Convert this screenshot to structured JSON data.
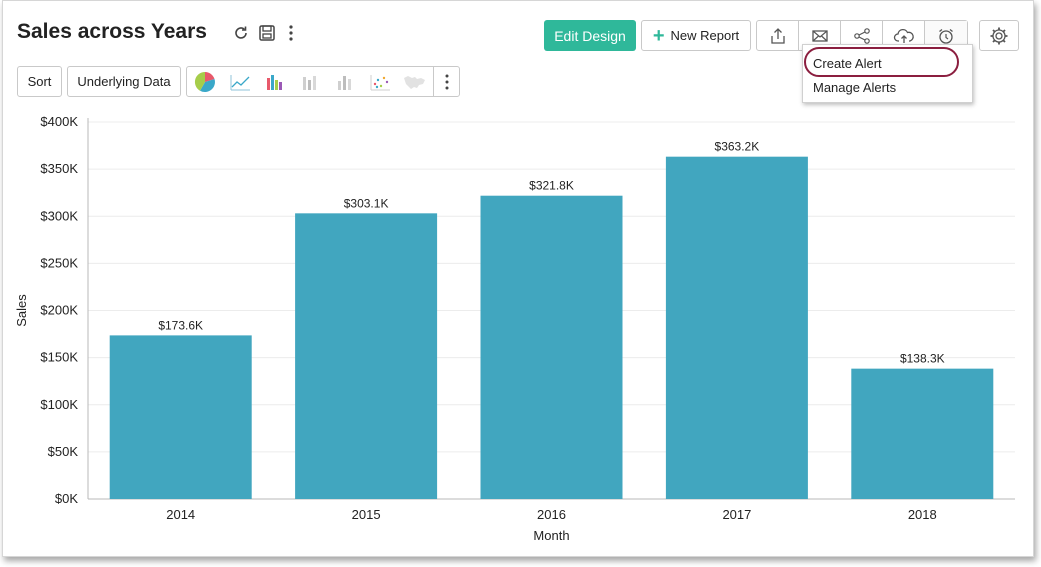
{
  "header": {
    "title": "Sales across Years",
    "edit_design_label": "Edit Design",
    "new_report_label": "New Report"
  },
  "toolbar": {
    "sort_label": "Sort",
    "underlying_data_label": "Underlying Data",
    "chart_type_icons": [
      "pie-chart-icon",
      "line-chart-icon",
      "bar-chart-icon",
      "stacked-bar-icon",
      "stacked-bar-alt-icon",
      "scatter-chart-icon",
      "map-chart-icon"
    ]
  },
  "action_icons": [
    "export-icon",
    "email-icon",
    "share-icon",
    "publish-cloud-icon",
    "alarm-icon"
  ],
  "alert_menu": {
    "items": [
      "Create Alert",
      "Manage Alerts"
    ]
  },
  "colors": {
    "accent": "#2fb89a",
    "bar": "#41a6bf",
    "highlight": "#8b1e3f"
  },
  "chart_data": {
    "type": "bar",
    "categories": [
      "2014",
      "2015",
      "2016",
      "2017",
      "2018"
    ],
    "values": [
      173.6,
      303.1,
      321.8,
      363.2,
      138.3
    ],
    "data_labels": [
      "$173.6K",
      "$303.1K",
      "$321.8K",
      "$363.2K",
      "$138.3K"
    ],
    "xlabel": "Month",
    "ylabel": "Sales",
    "ylim": [
      0,
      400
    ],
    "yticks": [
      "$0K",
      "$50K",
      "$100K",
      "$150K",
      "$200K",
      "$250K",
      "$300K",
      "$350K",
      "$400K"
    ],
    "grid": true
  }
}
